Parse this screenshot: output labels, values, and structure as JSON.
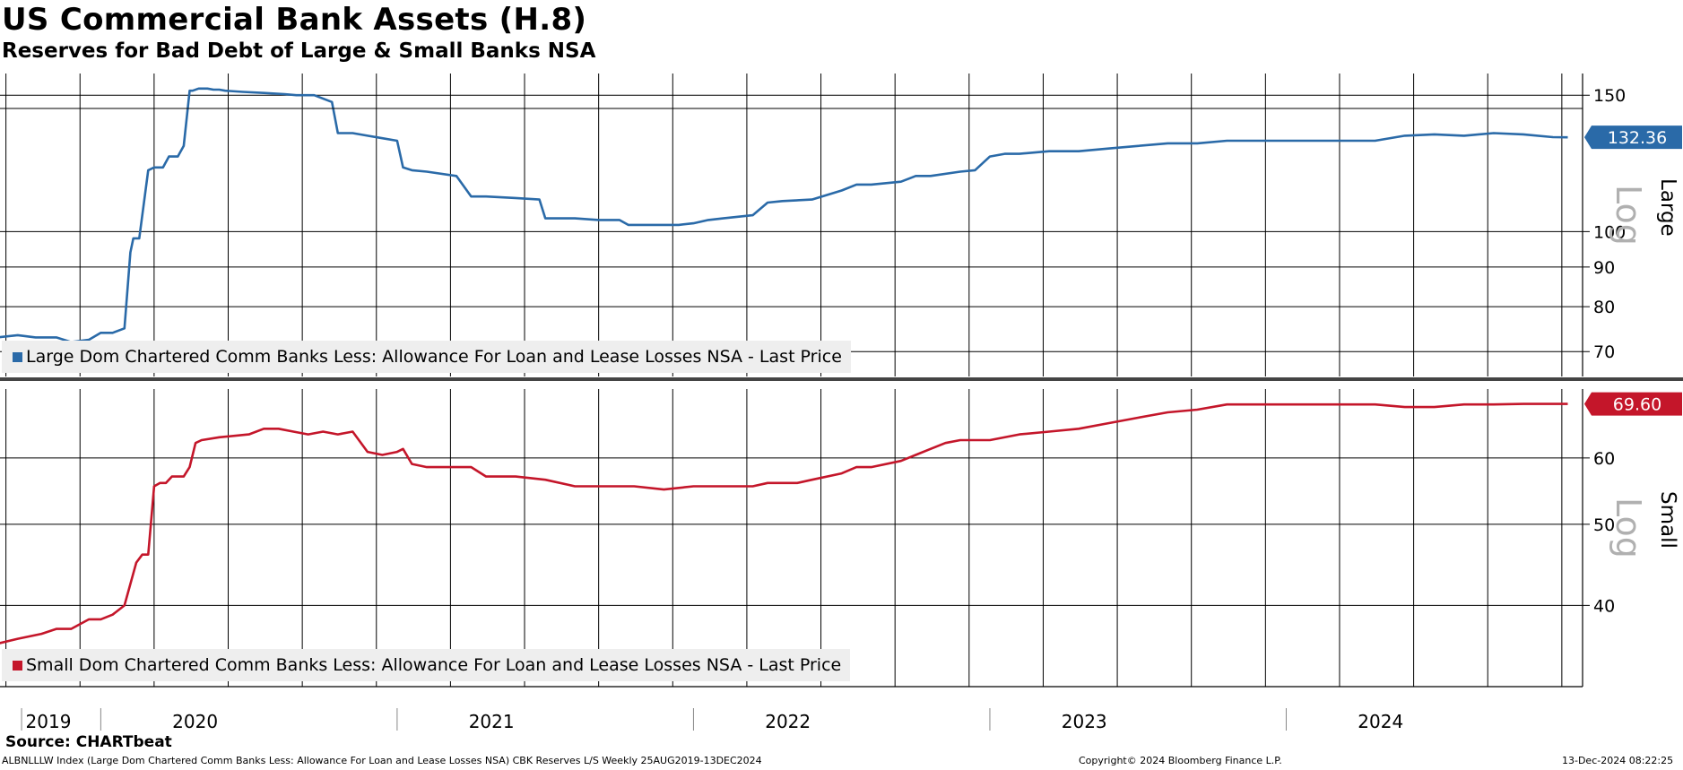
{
  "header": {
    "title": "US Commercial Bank Assets (H.8)",
    "subtitle": "Reserves for Bad Debt of Large & Small Banks NSA"
  },
  "footer": {
    "source": "Source: CHARTbeat",
    "description": "ALBNLLLW Index (Large Dom Chartered Comm Banks Less: Allowance For Loan and Lease Losses NSA) CBK Reserves L/S  Weekly 25AUG2019-13DEC2024",
    "copyright": "Copyright© 2024 Bloomberg Finance L.P.",
    "timestamp": "13-Dec-2024 08:22:25"
  },
  "chart_data": [
    {
      "type": "line",
      "panel": "top",
      "axis_label": "Large",
      "scale_label": "Log",
      "scale": "log",
      "ylim": [
        65,
        160
      ],
      "yticks": [
        70,
        80,
        90,
        100,
        150
      ],
      "last_value": "132.36",
      "legend": "Large Dom Chartered Comm Banks Less: Allowance For Loan and Lease Losses NSA - Last Price",
      "color": "#2a6aa8",
      "label_color": "#2a6aa8",
      "x_unit": "decimal year",
      "series": [
        {
          "name": "Large Dom Chartered Comm Banks Less: Allowance For Loan and Lease Losses NSA - Last Price",
          "x": [
            2019.65,
            2019.72,
            2019.78,
            2019.85,
            2019.9,
            2019.96,
            2020.0,
            2020.04,
            2020.08,
            2020.1,
            2020.11,
            2020.13,
            2020.16,
            2020.18,
            2020.21,
            2020.23,
            2020.26,
            2020.28,
            2020.3,
            2020.31,
            2020.33,
            2020.36,
            2020.38,
            2020.4,
            2020.42,
            2020.48,
            2020.55,
            2020.62,
            2020.66,
            2020.72,
            2020.78,
            2020.8,
            2020.85,
            2020.9,
            2020.95,
            2021.0,
            2021.02,
            2021.05,
            2021.1,
            2021.2,
            2021.25,
            2021.3,
            2021.4,
            2021.48,
            2021.5,
            2021.6,
            2021.68,
            2021.75,
            2021.78,
            2021.85,
            2021.95,
            2022.0,
            2022.05,
            2022.1,
            2022.2,
            2022.25,
            2022.3,
            2022.4,
            2022.5,
            2022.55,
            2022.6,
            2022.7,
            2022.75,
            2022.8,
            2022.9,
            2022.95,
            2023.0,
            2023.05,
            2023.1,
            2023.2,
            2023.3,
            2023.4,
            2023.5,
            2023.6,
            2023.7,
            2023.8,
            2023.9,
            2024.0,
            2024.1,
            2024.2,
            2024.3,
            2024.4,
            2024.5,
            2024.6,
            2024.7,
            2024.8,
            2024.9,
            2024.95
          ],
          "y": [
            73,
            73.5,
            73,
            73,
            72,
            72.5,
            74,
            74,
            75,
            94,
            98,
            98,
            120,
            121,
            121,
            125,
            125,
            129,
            152,
            152,
            153,
            153,
            152.5,
            152.5,
            152,
            151.5,
            151,
            150.5,
            150,
            150,
            147,
            134,
            134,
            133,
            132,
            131,
            121,
            120,
            119.5,
            118,
            111,
            111,
            110.5,
            110,
            104,
            104,
            103.5,
            103.5,
            102,
            102,
            102,
            102.5,
            103.5,
            104,
            105,
            109,
            109.5,
            110,
            113,
            115,
            115,
            116,
            118,
            118,
            119.5,
            120,
            125,
            126,
            126,
            127,
            127,
            128,
            129,
            130,
            130,
            131,
            131,
            131,
            131,
            131,
            131,
            133,
            133.5,
            133,
            134,
            133.5,
            132.4,
            132.36
          ]
        }
      ]
    },
    {
      "type": "line",
      "panel": "bottom",
      "axis_label": "Small",
      "scale_label": "Log",
      "scale": "log",
      "ylim": [
        32,
        72.5
      ],
      "yticks": [
        40,
        50,
        60
      ],
      "last_value": "69.60",
      "legend": "Small Dom Chartered Comm Banks Less: Allowance For Loan and Lease Losses NSA - Last Price",
      "color": "#c4162a",
      "label_color": "#c4162a",
      "x_unit": "decimal year",
      "series": [
        {
          "name": "Small Dom Chartered Comm Banks Less: Allowance For Loan and Lease Losses NSA - Last Price",
          "x": [
            2019.65,
            2019.72,
            2019.8,
            2019.85,
            2019.9,
            2019.96,
            2020.0,
            2020.04,
            2020.08,
            2020.12,
            2020.14,
            2020.16,
            2020.18,
            2020.2,
            2020.22,
            2020.24,
            2020.26,
            2020.28,
            2020.3,
            2020.32,
            2020.34,
            2020.4,
            2020.5,
            2020.55,
            2020.6,
            2020.65,
            2020.7,
            2020.75,
            2020.8,
            2020.85,
            2020.9,
            2020.95,
            2021.0,
            2021.02,
            2021.05,
            2021.1,
            2021.2,
            2021.25,
            2021.3,
            2021.4,
            2021.5,
            2021.6,
            2021.7,
            2021.8,
            2021.9,
            2022.0,
            2022.1,
            2022.2,
            2022.25,
            2022.3,
            2022.35,
            2022.4,
            2022.5,
            2022.55,
            2022.6,
            2022.7,
            2022.75,
            2022.8,
            2022.85,
            2022.9,
            2022.95,
            2023.0,
            2023.1,
            2023.2,
            2023.3,
            2023.4,
            2023.5,
            2023.6,
            2023.7,
            2023.8,
            2023.9,
            2024.0,
            2024.1,
            2024.2,
            2024.3,
            2024.4,
            2024.5,
            2024.6,
            2024.7,
            2024.8,
            2024.9,
            2024.95
          ],
          "y": [
            36,
            36.5,
            37,
            37.5,
            37.5,
            38.5,
            38.5,
            39,
            40,
            45,
            46,
            46,
            55.5,
            56,
            56,
            57,
            57,
            57,
            58.5,
            62.5,
            63,
            63.5,
            64,
            65,
            65,
            64.5,
            64,
            64.5,
            64,
            64.5,
            61,
            60.5,
            61,
            61.5,
            59,
            58.5,
            58.5,
            58.5,
            57,
            57,
            56.5,
            55.5,
            55.5,
            55.5,
            55,
            55.5,
            55.5,
            55.5,
            56,
            56,
            56,
            56.5,
            57.5,
            58.5,
            58.5,
            59.5,
            60.5,
            61.5,
            62.5,
            63,
            63,
            63,
            64,
            64.5,
            65,
            66,
            67,
            68,
            68.5,
            69.5,
            69.5,
            69.5,
            69.5,
            69.5,
            69.5,
            69,
            69,
            69.5,
            69.5,
            69.6,
            69.6,
            69.6
          ]
        }
      ]
    }
  ],
  "xaxis": {
    "year_labels": [
      "2019",
      "2020",
      "2021",
      "2022",
      "2023",
      "2024"
    ]
  }
}
